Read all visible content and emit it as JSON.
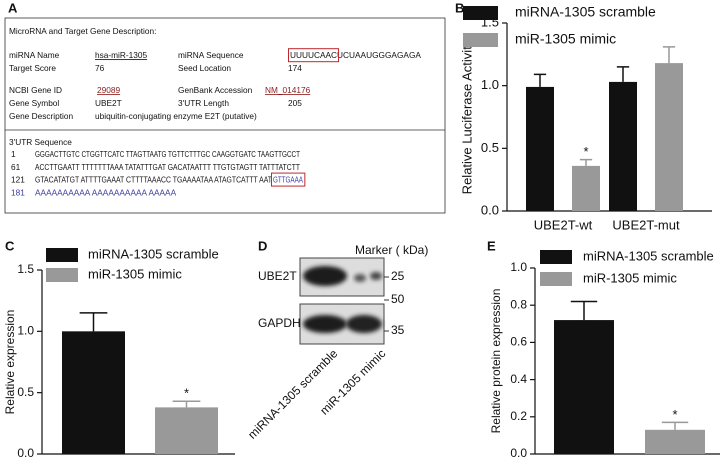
{
  "panel_a": {
    "label": "A",
    "title": "MicroRNA and Target Gene Description:",
    "mirna_name_label": "miRNA Name",
    "mirna_name": "hsa-miR-1305",
    "mirna_sequence_label": "miRNA Sequence",
    "mirna_sequence_seed": "UUUUCAAC",
    "mirna_sequence_rest": "UCUAAUGGGAGAGA",
    "target_score_label": "Target Score",
    "target_score": "76",
    "seed_location_label": "Seed Location",
    "seed_location": "174",
    "gene_id_label": "NCBI Gene ID",
    "gene_id": "29089",
    "accession_label": "GenBank Accession",
    "accession": "NM_014176",
    "gene_symbol_label": "Gene Symbol",
    "gene_symbol": "UBE2T",
    "utr_length_label": "3'UTR Length",
    "utr_length": "205",
    "gene_description_label": "Gene Description",
    "gene_description": "ubiquitin-conjugating enzyme E2T (putative)",
    "utr_title": "3'UTR Sequence",
    "utr_lines": [
      {
        "start": "1",
        "seq": "GGGACTTGTC CTGGTTCATC TTAGTTAATG TGTTCTTTGC CAAGGTGATC TAAGTTGCCT"
      },
      {
        "start": "61",
        "seq": "ACCTTGAATT TTTTTTTAAA TATATTTGAT GACATAATTT TTGTGTAGTT TATTTATCTT"
      },
      {
        "start": "121",
        "seq": "GTACATATGT ATTTTGAAAT CTTTTAAACC TGAAAATAA ATAGTCATTT AAT",
        "site": "GTTGAAA"
      },
      {
        "start": "181",
        "seq": "AAAAAAAAAA AAAAAAAAAA AAAAA"
      }
    ]
  },
  "panel_d": {
    "label": "D",
    "marker_title": "Marker ( kDa)",
    "rows": [
      "UBE2T",
      "GAPDH"
    ],
    "markers": [
      "25",
      "50",
      "35"
    ],
    "lanes": [
      "miRNA-1305 scramble",
      "miR-1305 mimic"
    ]
  },
  "chart_data": [
    {
      "type": "bar",
      "label": "B",
      "y_label": "Relative Luciferase Activity",
      "categories": [
        "UBE2T-wt",
        "UBE2T-mut"
      ],
      "series": [
        {
          "name": "miRNA-1305 scramble",
          "color": "#111111",
          "values": [
            0.99,
            1.03
          ],
          "errors": [
            0.1,
            0.12
          ]
        },
        {
          "name": "miR-1305 mimic",
          "color": "#999999",
          "values": [
            0.36,
            1.18
          ],
          "errors": [
            0.05,
            0.13
          ]
        }
      ],
      "annotation": "*",
      "ylim": [
        0,
        1.5
      ],
      "yticks": [
        {
          "value": 0,
          "label": "0.0"
        },
        0.5,
        {
          "value": 1,
          "label": "1.0"
        },
        1.5
      ]
    },
    {
      "type": "bar",
      "label": "C",
      "y_label": "Relative expression",
      "categories": [
        null
      ],
      "series": [
        {
          "name": "miRNA-1305 scramble",
          "color": "#111111",
          "values": [
            1.0
          ],
          "errors": [
            0.15
          ]
        },
        {
          "name": "miR-1305 mimic",
          "color": "#999999",
          "values": [
            0.38
          ],
          "errors": [
            0.05
          ]
        }
      ],
      "annotation": "*",
      "ylim": [
        0,
        1.5
      ],
      "yticks": [
        {
          "value": 0,
          "label": "0.0"
        },
        0.5,
        {
          "value": 1,
          "label": "1.0"
        },
        1.5
      ]
    },
    {
      "type": "bar",
      "label": "E",
      "y_label": "Relative protein expression",
      "categories": [
        null
      ],
      "series": [
        {
          "name": "miRNA-1305 scramble",
          "color": "#111111",
          "values": [
            0.72
          ],
          "errors": [
            0.1
          ]
        },
        {
          "name": "miR-1305 mimic",
          "color": "#999999",
          "values": [
            0.13
          ],
          "errors": [
            0.04
          ]
        }
      ],
      "annotation": "*",
      "ylim": [
        0,
        1.0
      ],
      "yticks": [
        {
          "value": 0,
          "label": "0.0"
        },
        0.2,
        0.4,
        0.6,
        0.8,
        {
          "value": 1,
          "label": "1.0"
        }
      ]
    }
  ]
}
